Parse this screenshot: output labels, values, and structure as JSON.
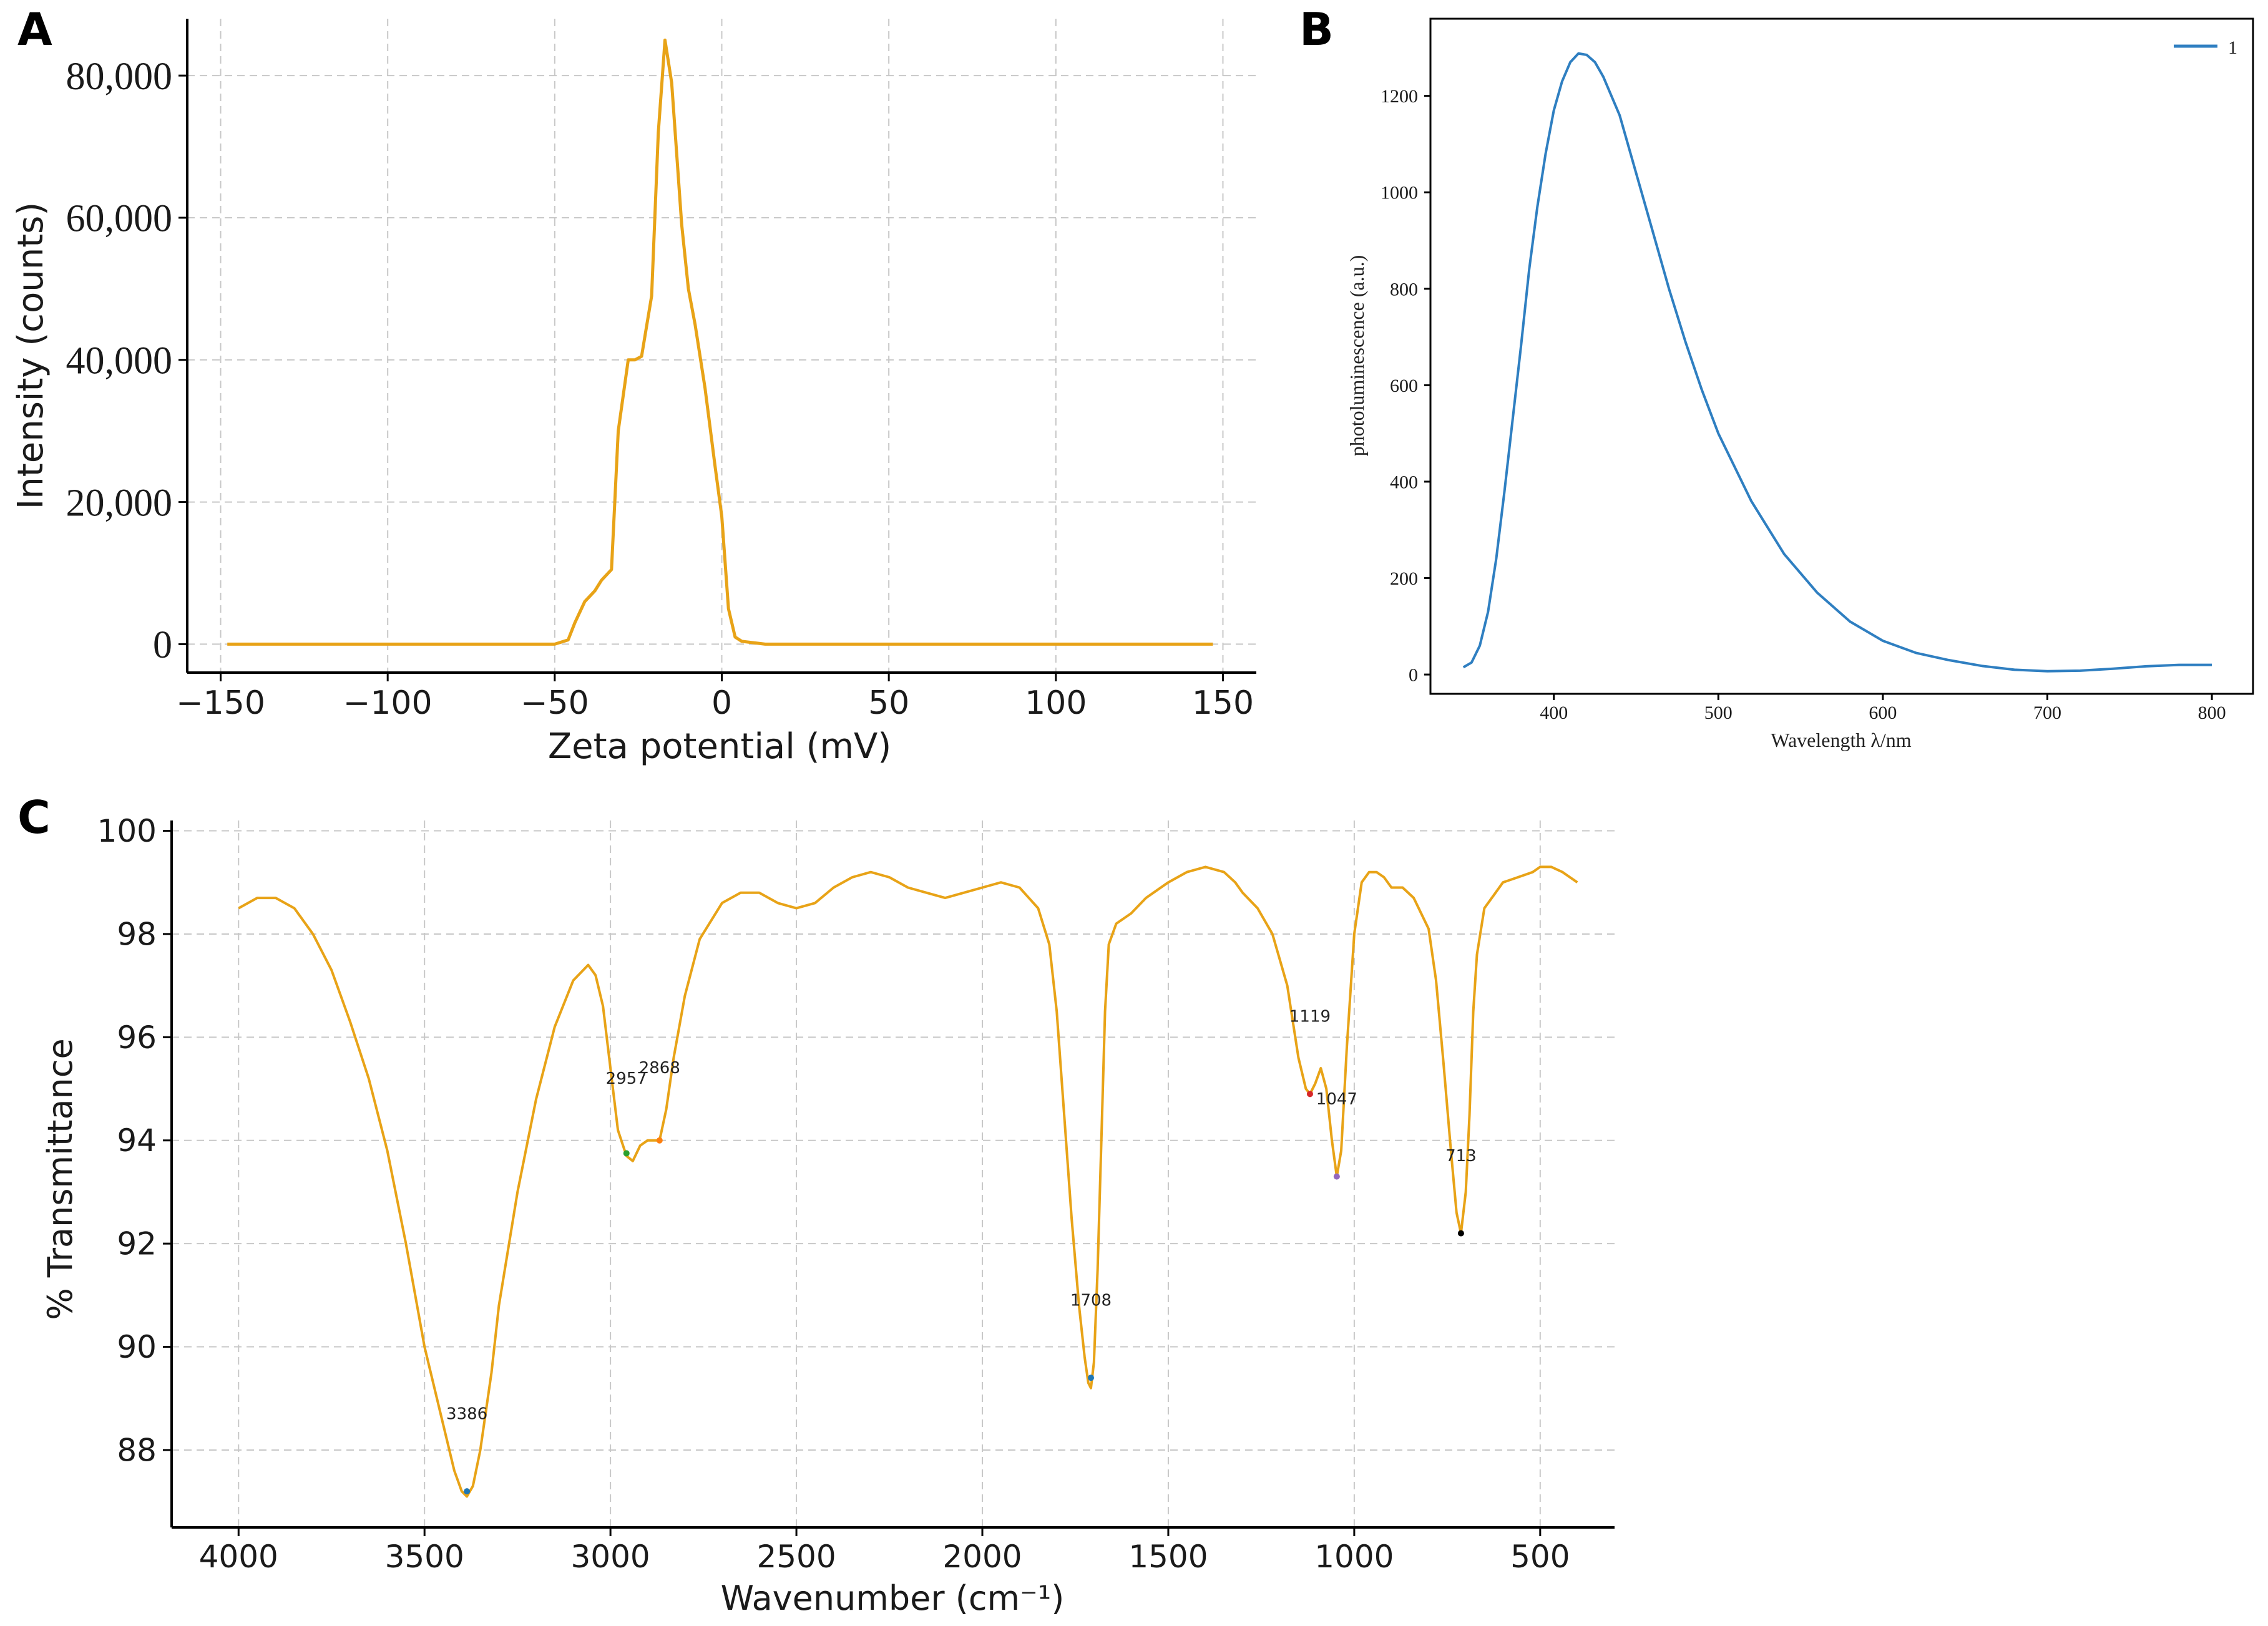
{
  "colors": {
    "orange": "#E8A317",
    "blue": "#2F7FC1",
    "grid": "#c8c8c8",
    "axis": "#000000"
  },
  "chart_data": [
    {
      "panel": "A",
      "type": "line",
      "xlabel": "Zeta potential (mV)",
      "ylabel": "Intensity (counts)",
      "xlim": [
        -160,
        160
      ],
      "ylim": [
        -4000,
        88000
      ],
      "xticks": [
        -150,
        -100,
        -50,
        0,
        50,
        100,
        150
      ],
      "xtick_labels": [
        "−150",
        "−100",
        "−50",
        "0",
        "50",
        "100",
        "150"
      ],
      "yticks": [
        0,
        20000,
        40000,
        60000,
        80000
      ],
      "ytick_labels": [
        "0",
        "20,000",
        "40,000",
        "60,000",
        "80,000"
      ],
      "grid": true,
      "series": [
        {
          "color": "#E8A317",
          "x": [
            -148,
            -50,
            -46,
            -44,
            -41,
            -38,
            -36,
            -33,
            -31,
            -28,
            -26,
            -24,
            -21,
            -19,
            -17,
            -15,
            -12,
            -10,
            -8,
            -5,
            -2,
            0,
            2,
            4,
            6,
            13,
            40,
            100,
            147
          ],
          "y": [
            0,
            0,
            600,
            3000,
            6000,
            7500,
            9000,
            10500,
            30000,
            40000,
            40000,
            40500,
            49000,
            72000,
            85000,
            79000,
            59000,
            50000,
            45000,
            36000,
            25000,
            18000,
            5000,
            1000,
            400,
            0,
            0,
            0,
            0
          ]
        }
      ]
    },
    {
      "panel": "B",
      "type": "line",
      "xlabel": "Wavelength λ/nm",
      "ylabel": "photoluminescence (a.u.)",
      "xlim": [
        325,
        825
      ],
      "ylim": [
        -40,
        1360
      ],
      "xticks": [
        400,
        500,
        600,
        700,
        800
      ],
      "xtick_labels": [
        "400",
        "500",
        "600",
        "700",
        "800"
      ],
      "yticks": [
        0,
        200,
        400,
        600,
        800,
        1000,
        1200
      ],
      "ytick_labels": [
        "0",
        "200",
        "400",
        "600",
        "800",
        "1000",
        "1200"
      ],
      "grid": false,
      "legend": {
        "position": "top-right",
        "entries": [
          "1"
        ]
      },
      "series": [
        {
          "name": "1",
          "color": "#2F7FC1",
          "x": [
            345,
            350,
            355,
            360,
            365,
            370,
            375,
            380,
            385,
            390,
            395,
            400,
            405,
            410,
            415,
            420,
            425,
            430,
            440,
            450,
            460,
            470,
            480,
            490,
            500,
            520,
            540,
            560,
            580,
            600,
            620,
            640,
            660,
            680,
            700,
            720,
            740,
            760,
            780,
            800
          ],
          "y": [
            15,
            25,
            60,
            130,
            240,
            380,
            530,
            680,
            840,
            970,
            1080,
            1170,
            1230,
            1270,
            1288,
            1285,
            1270,
            1240,
            1160,
            1040,
            920,
            800,
            690,
            590,
            500,
            360,
            250,
            170,
            110,
            70,
            45,
            30,
            18,
            10,
            7,
            8,
            12,
            17,
            20,
            20
          ]
        }
      ]
    },
    {
      "panel": "C",
      "type": "line",
      "xlabel": "Wavenumber (cm⁻¹)",
      "ylabel": "% Transmittance",
      "xlim": [
        4180,
        300
      ],
      "ylim": [
        86.5,
        100.2
      ],
      "xticks": [
        4000,
        3500,
        3000,
        2500,
        2000,
        1500,
        1000,
        500
      ],
      "xtick_labels": [
        "4000",
        "3500",
        "3000",
        "2500",
        "2000",
        "1500",
        "1000",
        "500"
      ],
      "yticks": [
        88,
        90,
        92,
        94,
        96,
        98,
        100
      ],
      "ytick_labels": [
        "88",
        "90",
        "92",
        "94",
        "96",
        "98",
        "100"
      ],
      "grid": true,
      "series": [
        {
          "color": "#E8A317",
          "x": [
            4000,
            3950,
            3900,
            3850,
            3800,
            3750,
            3700,
            3650,
            3600,
            3550,
            3500,
            3450,
            3420,
            3400,
            3386,
            3370,
            3350,
            3320,
            3300,
            3250,
            3200,
            3150,
            3100,
            3060,
            3040,
            3020,
            3000,
            2980,
            2957,
            2940,
            2920,
            2900,
            2880,
            2868,
            2850,
            2830,
            2800,
            2760,
            2700,
            2650,
            2600,
            2550,
            2500,
            2450,
            2400,
            2350,
            2300,
            2250,
            2200,
            2150,
            2100,
            2050,
            2000,
            1950,
            1900,
            1850,
            1820,
            1800,
            1780,
            1760,
            1740,
            1725,
            1715,
            1708,
            1700,
            1690,
            1680,
            1670,
            1660,
            1640,
            1620,
            1600,
            1560,
            1500,
            1450,
            1400,
            1350,
            1320,
            1300,
            1260,
            1220,
            1180,
            1150,
            1130,
            1119,
            1105,
            1090,
            1075,
            1060,
            1047,
            1035,
            1020,
            1000,
            980,
            960,
            940,
            920,
            900,
            870,
            840,
            800,
            780,
            760,
            740,
            725,
            713,
            700,
            690,
            680,
            670,
            650,
            620,
            600,
            560,
            520,
            500,
            470,
            440,
            420,
            400
          ],
          "y": [
            98.5,
            98.7,
            98.7,
            98.5,
            98.0,
            97.3,
            96.3,
            95.2,
            93.8,
            92.0,
            90.0,
            88.5,
            87.6,
            87.2,
            87.1,
            87.3,
            88.0,
            89.5,
            90.8,
            93.0,
            94.8,
            96.2,
            97.1,
            97.4,
            97.2,
            96.6,
            95.4,
            94.2,
            93.7,
            93.6,
            93.9,
            94.0,
            94.0,
            94.0,
            94.6,
            95.6,
            96.8,
            97.9,
            98.6,
            98.8,
            98.8,
            98.6,
            98.5,
            98.6,
            98.9,
            99.1,
            99.2,
            99.1,
            98.9,
            98.8,
            98.7,
            98.8,
            98.9,
            99.0,
            98.9,
            98.5,
            97.8,
            96.5,
            94.5,
            92.5,
            90.8,
            89.8,
            89.3,
            89.2,
            89.7,
            91.5,
            94.0,
            96.5,
            97.8,
            98.2,
            98.3,
            98.4,
            98.7,
            99.0,
            99.2,
            99.3,
            99.2,
            99.0,
            98.8,
            98.5,
            98.0,
            97.0,
            95.6,
            95.0,
            94.9,
            95.1,
            95.4,
            95.0,
            94.0,
            93.3,
            93.8,
            95.8,
            98.0,
            99.0,
            99.2,
            99.2,
            99.1,
            98.9,
            98.9,
            98.7,
            98.1,
            97.1,
            95.5,
            93.8,
            92.6,
            92.2,
            93.0,
            94.5,
            96.5,
            97.6,
            98.5,
            98.8,
            99.0,
            99.1,
            99.2,
            99.3,
            99.3,
            99.2,
            99.1,
            99.0
          ]
        }
      ],
      "annotations": [
        {
          "text": "3386",
          "x": 3386,
          "y": 87.2,
          "label_y": 88.6,
          "marker": "#1f77b4"
        },
        {
          "text": "2957",
          "x": 2957,
          "y": 93.75,
          "label_y": 95.1,
          "marker": "#2ca02c"
        },
        {
          "text": "2868",
          "x": 2868,
          "y": 94.0,
          "label_y": 95.3,
          "marker": "#ff7f0e"
        },
        {
          "text": "1708",
          "x": 1708,
          "y": 89.4,
          "label_y": 90.8,
          "marker": "#1f77b4"
        },
        {
          "text": "1119",
          "x": 1119,
          "y": 94.9,
          "label_y": 96.3,
          "marker": "#d62728"
        },
        {
          "text": "1047",
          "x": 1047,
          "y": 93.3,
          "label_y": 94.7,
          "marker": "#9467bd"
        },
        {
          "text": "713",
          "x": 713,
          "y": 92.2,
          "label_y": 93.6,
          "marker": "#000000"
        }
      ]
    }
  ],
  "panel_labels": [
    "A",
    "B",
    "C"
  ]
}
